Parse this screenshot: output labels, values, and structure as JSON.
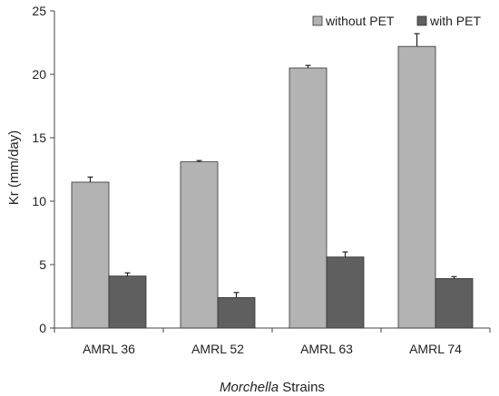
{
  "chart_data": {
    "type": "bar",
    "title": "",
    "xlabel": {
      "italic": "Morchella",
      "rest": " Strains"
    },
    "ylabel": "Kr (mm/day)",
    "ylim": [
      0,
      25
    ],
    "yticks": [
      0,
      5,
      10,
      15,
      20,
      25
    ],
    "categories": [
      "AMRL 36",
      "AMRL 52",
      "AMRL 63",
      "AMRL 74"
    ],
    "series": [
      {
        "name": "without PET",
        "color": "#b3b3b3",
        "values": [
          11.5,
          13.1,
          20.5,
          22.2
        ],
        "errors": [
          0.4,
          0.1,
          0.2,
          1.0
        ]
      },
      {
        "name": "with PET",
        "color": "#5f5f5f",
        "values": [
          4.1,
          2.4,
          5.6,
          3.9
        ],
        "errors": [
          0.25,
          0.4,
          0.4,
          0.15
        ]
      }
    ],
    "grid": false,
    "legend_position": "top-right"
  }
}
